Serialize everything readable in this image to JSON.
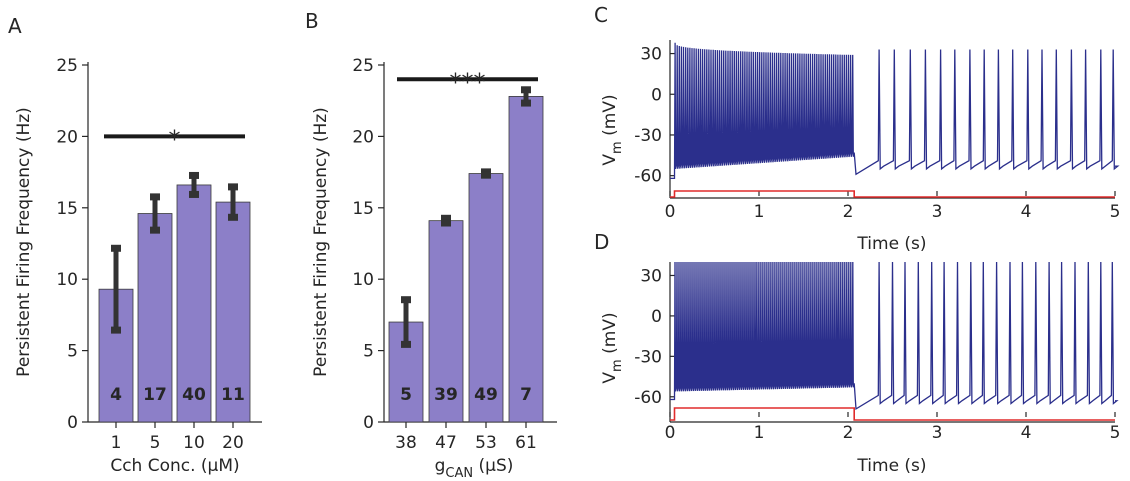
{
  "chart_data": [
    {
      "panel": "A",
      "type": "bar",
      "categories": [
        "1",
        "5",
        "10",
        "20"
      ],
      "values": [
        9.3,
        14.6,
        16.6,
        15.4
      ],
      "errors": [
        2.9,
        1.2,
        0.7,
        1.1
      ],
      "n_labels": [
        "4",
        "17",
        "40",
        "11"
      ],
      "xlabel": "Cch Conc. (μM)",
      "ylabel": "Persistent Firing Frequency (Hz)",
      "ylim": [
        0,
        25
      ],
      "yticks": [
        "0",
        "5",
        "10",
        "15",
        "20",
        "25"
      ],
      "significance": {
        "label": "*",
        "y": 20
      }
    },
    {
      "panel": "B",
      "type": "bar",
      "categories": [
        "38",
        "47",
        "53",
        "61"
      ],
      "values": [
        7.0,
        14.1,
        17.4,
        22.8
      ],
      "errors": [
        1.6,
        0.2,
        0.15,
        0.5
      ],
      "n_labels": [
        "5",
        "39",
        "49",
        "7"
      ],
      "xlabel_main": "g",
      "xlabel_sub": "CAN",
      "xlabel_unit": " (μS)",
      "ylabel": "Persistent Firing Frequency (Hz)",
      "ylim": [
        0,
        25
      ],
      "yticks": [
        "0",
        "5",
        "10",
        "15",
        "20",
        "25"
      ],
      "significance": {
        "label": "***",
        "y": 24
      }
    },
    {
      "panel": "C",
      "type": "line",
      "xlabel": "Time (s)",
      "ylabel_main": "V",
      "ylabel_sub": "m",
      "ylabel_unit": " (mV)",
      "xlim": [
        0,
        5
      ],
      "ylim": [
        -75,
        40
      ],
      "xticks": [
        "0",
        "1",
        "2",
        "3",
        "4",
        "5"
      ],
      "yticks": [
        "30",
        "0",
        "-30",
        "-60"
      ],
      "stimulus": {
        "start": 0.05,
        "end": 2.07
      },
      "drive_spikes": {
        "count": 85,
        "peak_start": 38,
        "peak_end": 29,
        "trough_start": -55,
        "trough_end": -46
      },
      "persistent_spike_times": [
        2.35,
        2.52,
        2.7,
        2.87,
        3.04,
        3.2,
        3.37,
        3.53,
        3.69,
        3.85,
        4.02,
        4.18,
        4.34,
        4.51,
        4.67,
        4.84,
        4.98
      ],
      "persistent_trough": -55,
      "persistent_peak": 33
    },
    {
      "panel": "D",
      "type": "line",
      "xlabel": "Time (s)",
      "ylabel_main": "V",
      "ylabel_sub": "m",
      "ylabel_unit": " (mV)",
      "xlim": [
        0,
        5
      ],
      "ylim": [
        -75,
        40
      ],
      "xticks": [
        "0",
        "1",
        "2",
        "3",
        "4",
        "5"
      ],
      "yticks": [
        "30",
        "0",
        "-30",
        "-60"
      ],
      "stimulus": {
        "start": 0.05,
        "end": 2.07
      },
      "drive_spikes": {
        "count": 90,
        "peak_start": 40,
        "peak_end": 40,
        "trough_start": -56,
        "trough_end": -53
      },
      "persistent_spike_times": [
        2.35,
        2.5,
        2.64,
        2.79,
        2.94,
        3.08,
        3.23,
        3.38,
        3.52,
        3.67,
        3.82,
        3.96,
        4.11,
        4.26,
        4.4,
        4.55,
        4.7,
        4.84,
        4.97
      ],
      "persistent_trough": -65,
      "persistent_peak": 40
    }
  ]
}
